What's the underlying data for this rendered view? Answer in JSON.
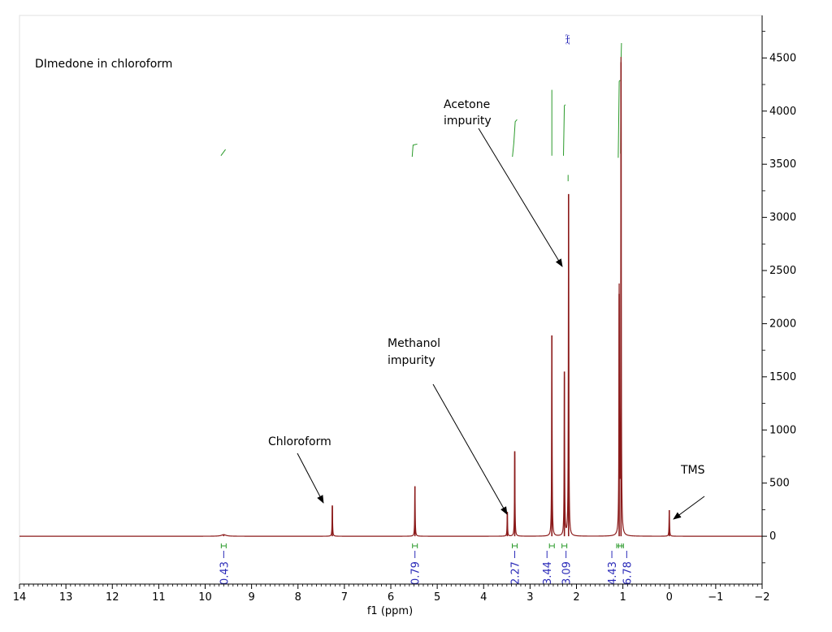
{
  "chart_data": {
    "type": "line",
    "title": "DImedone in chloroform",
    "xlabel": "f1 (ppm)",
    "ylabel": "",
    "xlim": [
      14,
      -2
    ],
    "ylim": [
      -450,
      4900
    ],
    "x_ticks": [
      "14",
      "13",
      "12",
      "11",
      "10",
      "9",
      "8",
      "7",
      "6",
      "5",
      "4",
      "3",
      "2",
      "1",
      "0",
      "−1",
      "−2"
    ],
    "y_ticks": [
      "4500",
      "4000",
      "3500",
      "3000",
      "2500",
      "2000",
      "1500",
      "1000",
      "500",
      "0"
    ],
    "grid": false,
    "series": [
      {
        "peaks": [
          {
            "ppm": 9.6,
            "height": 15
          },
          {
            "ppm": 7.26,
            "height": 290
          },
          {
            "ppm": 5.48,
            "height": 470
          },
          {
            "ppm": 3.49,
            "height": 230
          },
          {
            "ppm": 3.33,
            "height": 800
          },
          {
            "ppm": 2.53,
            "height": 1890
          },
          {
            "ppm": 2.26,
            "height": 1550
          },
          {
            "ppm": 2.17,
            "height": 3220
          },
          {
            "ppm": 1.08,
            "height": 2280
          },
          {
            "ppm": 1.04,
            "height": 4460
          },
          {
            "ppm": 0.0,
            "height": 245
          }
        ],
        "color": "#8b1a1a"
      }
    ],
    "peak_labels": [
      "2.17"
    ],
    "integrals": [
      {
        "ppm": 9.6,
        "value": "0.43"
      },
      {
        "ppm": 5.48,
        "value": "0.79"
      },
      {
        "ppm": 3.33,
        "value": "2.27"
      },
      {
        "ppm": 2.53,
        "value": "3.44"
      },
      {
        "ppm": 2.26,
        "value": "3.09"
      },
      {
        "ppm": 1.08,
        "value": "4.43"
      },
      {
        "ppm": 1.04,
        "value": "6.78"
      }
    ],
    "annotations": [
      {
        "text": "Chloroform"
      },
      {
        "text": "Methanol"
      },
      {
        "text": "impurity"
      },
      {
        "text": "Acetone"
      },
      {
        "text": "impurity"
      },
      {
        "text": "TMS"
      }
    ],
    "colors": {
      "spectrum": "#8b1a1a",
      "integral_curve": "#2a9a2a",
      "integral_label": "#2a2ab8",
      "axis": "#000000"
    }
  }
}
